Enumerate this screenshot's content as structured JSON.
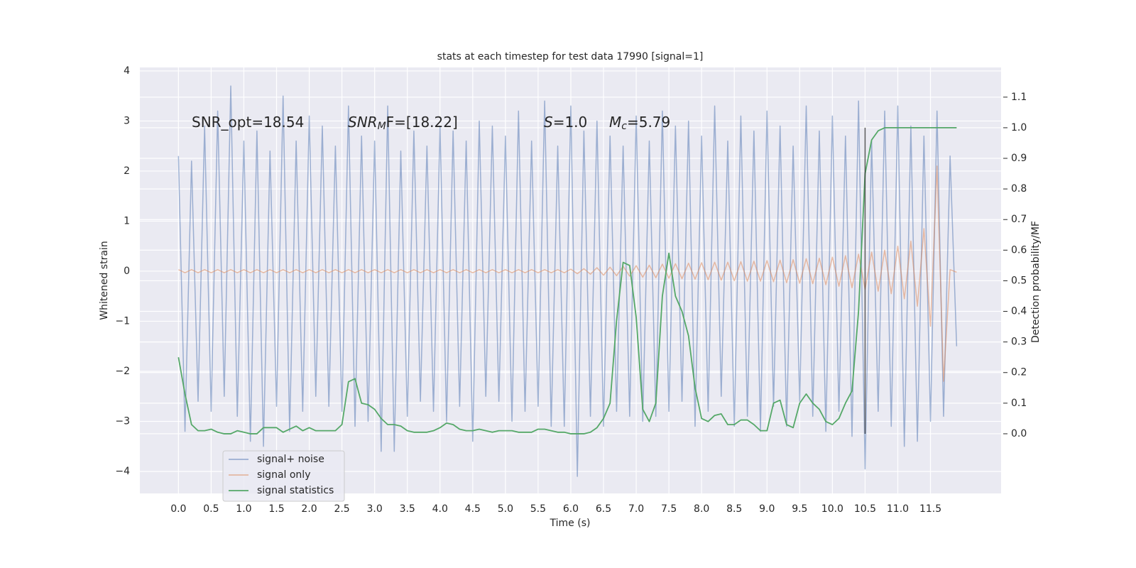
{
  "chart_data": {
    "type": "line",
    "title": "stats at each timestep for test data 17990 [signal=1]",
    "xlabel": "Time (s)",
    "ylabel": "Whitened strain",
    "y2label": "Detection probability/MF",
    "grid": true,
    "background": "#eaeaf2",
    "legend": "lower left",
    "xlim": [
      -0.59,
      12.58
    ],
    "ylim": [
      -4.44,
      4.07
    ],
    "y2lim": [
      -0.195,
      1.197
    ],
    "xticks": [
      {
        "value": 0,
        "label": "0.0"
      },
      0.5,
      {
        "value": 1,
        "label": "1.0"
      },
      1.5,
      {
        "value": 2,
        "label": "2.0"
      },
      2.5,
      {
        "value": 3,
        "label": "3.0"
      },
      3.5,
      {
        "value": 4,
        "label": "4.0"
      },
      4.5,
      {
        "value": 5,
        "label": "5.0"
      },
      5.5,
      {
        "value": 6,
        "label": "6.0"
      },
      6.5,
      {
        "value": 7,
        "label": "7.0"
      },
      7.5,
      {
        "value": 8,
        "label": "8.0"
      },
      8.5,
      {
        "value": 9,
        "label": "9.0"
      },
      9.5,
      {
        "value": 10,
        "label": "10.0"
      },
      10.5,
      {
        "value": 11,
        "label": "11.0"
      },
      11.5
    ],
    "yticks": [
      {
        "value": -4,
        "label": "−4"
      },
      {
        "value": -3,
        "label": "−3"
      },
      {
        "value": -2,
        "label": "−2"
      },
      {
        "value": -1,
        "label": "−1"
      },
      0,
      1,
      2,
      3,
      4
    ],
    "y2ticks": [
      {
        "value": 0,
        "label": "0.0"
      },
      0.1,
      0.2,
      0.3,
      0.4,
      0.5,
      0.6,
      0.7,
      0.8,
      0.9,
      {
        "value": 1,
        "label": "1.0"
      },
      1.1
    ],
    "x": [
      0,
      0.1,
      0.2,
      0.3,
      0.4,
      0.5,
      0.6,
      0.7,
      0.8,
      0.9,
      1,
      1.1,
      1.2,
      1.3,
      1.4,
      1.5,
      1.6,
      1.7,
      1.8,
      1.9,
      2,
      2.1,
      2.2,
      2.3,
      2.4,
      2.5,
      2.6,
      2.7,
      2.8,
      2.9,
      3,
      3.1,
      3.2,
      3.3,
      3.4,
      3.5,
      3.6,
      3.7,
      3.8,
      3.9,
      4,
      4.1,
      4.2,
      4.3,
      4.4,
      4.5,
      4.6,
      4.7,
      4.8,
      4.9,
      5,
      5.1,
      5.2,
      5.3,
      5.4,
      5.5,
      5.6,
      5.7,
      5.8,
      5.9,
      6,
      6.1,
      6.2,
      6.3,
      6.4,
      6.5,
      6.6,
      6.7,
      6.8,
      6.9,
      7,
      7.1,
      7.2,
      7.3,
      7.4,
      7.5,
      7.6,
      7.7,
      7.8,
      7.9,
      8,
      8.1,
      8.2,
      8.3,
      8.4,
      8.5,
      8.6,
      8.7,
      8.8,
      8.9,
      9,
      9.1,
      9.2,
      9.3,
      9.4,
      9.5,
      9.6,
      9.7,
      9.8,
      9.9,
      10,
      10.1,
      10.2,
      10.3,
      10.4,
      10.5,
      10.6,
      10.7,
      10.8,
      10.9,
      11,
      11.1,
      11.2,
      11.3,
      11.4,
      11.5,
      11.6,
      11.7,
      11.8,
      11.9
    ],
    "series": [
      {
        "name": "signal+ noise",
        "color": "#4c72b0",
        "alpha": 0.5,
        "values": [
          2.3,
          -3.2,
          2.2,
          -2.6,
          2.9,
          -2.8,
          3.2,
          -2.5,
          3.7,
          -2.9,
          2.6,
          -3.4,
          2.8,
          -3.5,
          2.4,
          -2.7,
          3.5,
          -3.2,
          2.6,
          -2.8,
          3.1,
          -2.5,
          2.9,
          -2.7,
          2.5,
          -2.8,
          3.3,
          -3.1,
          2.7,
          -3.0,
          2.6,
          -3.6,
          3.3,
          -3.6,
          2.4,
          -2.9,
          2.8,
          -2.6,
          2.5,
          -2.8,
          2.9,
          -3.0,
          2.8,
          -2.7,
          2.6,
          -3.4,
          3.0,
          -2.5,
          2.9,
          -2.6,
          2.7,
          -3.0,
          3.2,
          -2.8,
          2.6,
          -2.7,
          3.4,
          -3.1,
          2.5,
          -3.1,
          3.3,
          -4.1,
          2.8,
          -2.9,
          3.0,
          -3.1,
          2.7,
          -2.8,
          2.5,
          -2.9,
          3.1,
          -3.0,
          2.6,
          -2.9,
          3.2,
          -2.8,
          2.9,
          -2.6,
          3.0,
          -3.1,
          2.7,
          -2.8,
          3.3,
          -2.5,
          2.6,
          -3.1,
          3.1,
          -2.9,
          2.8,
          -3.2,
          3.2,
          -2.7,
          2.9,
          -3.1,
          2.5,
          -2.6,
          3.3,
          -2.9,
          2.8,
          -3.2,
          3.1,
          -2.8,
          2.7,
          -3.3,
          3.4,
          -3.95,
          2.6,
          -2.8,
          3.2,
          -3.1,
          3.3,
          -3.5,
          2.9,
          -3.4,
          2.7,
          -3.0,
          3.2,
          -2.9,
          2.3,
          -1.5
        ]
      },
      {
        "name": "signal only",
        "color": "#dd8452",
        "alpha": 0.5,
        "values": [
          0.03,
          -0.03,
          0.03,
          -0.03,
          0.03,
          -0.03,
          0.03,
          -0.03,
          0.03,
          -0.03,
          0.03,
          -0.03,
          0.03,
          -0.03,
          0.03,
          -0.03,
          0.03,
          -0.03,
          0.03,
          -0.03,
          0.03,
          -0.03,
          0.03,
          -0.03,
          0.03,
          -0.03,
          0.03,
          -0.03,
          0.03,
          -0.03,
          0.03,
          -0.03,
          0.03,
          -0.03,
          0.03,
          -0.03,
          0.03,
          -0.03,
          0.03,
          -0.03,
          0.03,
          -0.03,
          0.03,
          -0.03,
          0.03,
          -0.03,
          0.03,
          -0.03,
          0.03,
          -0.03,
          0.03,
          -0.03,
          0.03,
          -0.03,
          0.03,
          -0.03,
          0.03,
          -0.03,
          0.03,
          -0.03,
          0.04,
          -0.05,
          0.05,
          -0.06,
          0.07,
          -0.08,
          0.08,
          -0.09,
          0.1,
          -0.1,
          0.11,
          -0.12,
          0.12,
          -0.13,
          0.14,
          -0.14,
          0.15,
          -0.15,
          0.16,
          -0.16,
          0.17,
          -0.17,
          0.18,
          -0.18,
          0.18,
          -0.19,
          0.19,
          -0.2,
          0.2,
          -0.2,
          0.21,
          -0.21,
          0.22,
          -0.23,
          0.23,
          -0.24,
          0.25,
          -0.25,
          0.26,
          -0.27,
          0.28,
          -0.3,
          0.31,
          -0.33,
          0.34,
          -0.36,
          0.38,
          -0.4,
          0.42,
          -0.45,
          0.5,
          -0.55,
          0.6,
          -0.7,
          0.85,
          -1.1,
          2.1,
          -2.2,
          0.03,
          -0.02
        ]
      },
      {
        "name": "signal statistics",
        "color": "#55a868",
        "alpha": 1,
        "axis": "y2",
        "values": [
          0.25,
          0.13,
          0.03,
          0.01,
          0.01,
          0.015,
          0.005,
          0.0,
          0.0,
          0.01,
          0.005,
          0.0,
          0.0,
          0.02,
          0.02,
          0.02,
          0.005,
          0.015,
          0.025,
          0.01,
          0.02,
          0.01,
          0.01,
          0.01,
          0.01,
          0.03,
          0.17,
          0.18,
          0.1,
          0.095,
          0.08,
          0.05,
          0.03,
          0.03,
          0.025,
          0.01,
          0.005,
          0.005,
          0.005,
          0.01,
          0.02,
          0.035,
          0.03,
          0.015,
          0.01,
          0.01,
          0.015,
          0.01,
          0.005,
          0.01,
          0.01,
          0.01,
          0.005,
          0.005,
          0.005,
          0.015,
          0.015,
          0.01,
          0.005,
          0.005,
          0.0,
          0.0,
          0.0,
          0.005,
          0.02,
          0.05,
          0.1,
          0.37,
          0.56,
          0.55,
          0.38,
          0.08,
          0.04,
          0.1,
          0.45,
          0.59,
          0.45,
          0.4,
          0.32,
          0.15,
          0.05,
          0.04,
          0.06,
          0.065,
          0.03,
          0.03,
          0.045,
          0.045,
          0.03,
          0.01,
          0.01,
          0.1,
          0.11,
          0.03,
          0.02,
          0.1,
          0.13,
          0.1,
          0.08,
          0.04,
          0.03,
          0.05,
          0.1,
          0.14,
          0.4,
          0.85,
          0.96,
          0.99,
          1.0,
          1.0,
          1.0,
          1.0,
          1.0,
          1.0,
          1.0,
          1.0,
          1.0,
          1.0,
          1.0,
          1.0
        ]
      }
    ],
    "vline": {
      "x": 10.5,
      "ymin": 0,
      "ymax": 1,
      "axis": "y2",
      "color": "#333333"
    },
    "annotations": [
      [
        {
          "text": "SNR_opt=18.54"
        }
      ],
      [
        {
          "text": "SNR",
          "italic": true
        },
        {
          "text": "M",
          "italic": true,
          "sub": true
        },
        {
          "text": "F=[18.22]"
        }
      ],
      [
        {
          "text": "S",
          "italic": true
        },
        {
          "text": "=1.0"
        }
      ],
      [
        {
          "text": "M",
          "italic": true
        },
        {
          "text": "c",
          "italic": true,
          "sub": true
        },
        {
          "text": "=5.79"
        }
      ]
    ]
  }
}
